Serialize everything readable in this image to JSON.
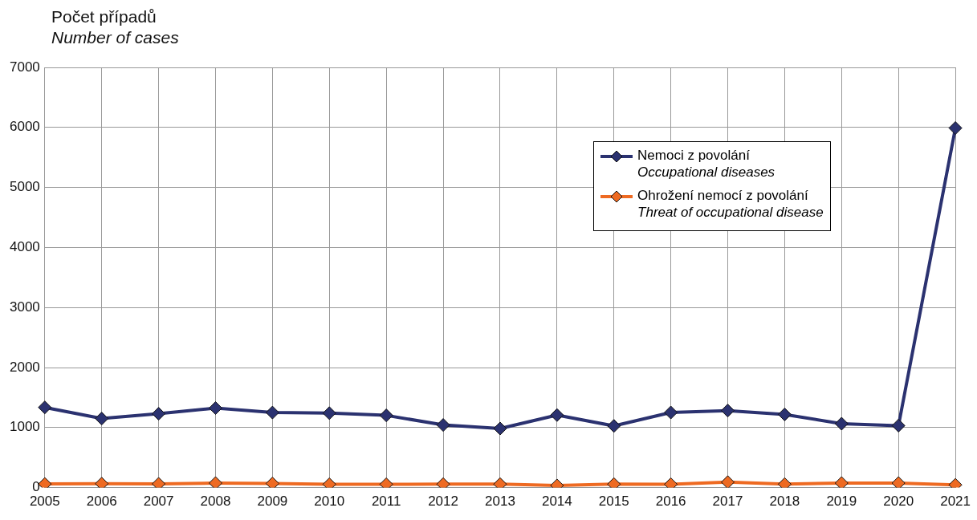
{
  "chart_data": {
    "type": "line",
    "ylabel": "Počet případů\nNumber of cases",
    "categories": [
      "2005",
      "2006",
      "2007",
      "2008",
      "2009",
      "2010",
      "2011",
      "2012",
      "2013",
      "2014",
      "2015",
      "2016",
      "2017",
      "2018",
      "2019",
      "2020",
      "2021"
    ],
    "series": [
      {
        "name": "Nemoci z povolání\nOccupational diseases",
        "color": "#2b3270",
        "values": [
          1336,
          1150,
          1230,
          1325,
          1250,
          1240,
          1203,
          1043,
          984,
          1208,
          1027,
          1251,
          1283,
          1219,
          1064,
          1032,
          5990
        ]
      },
      {
        "name": "Ohrožení nemocí z povolání\nThreat of occupational disease",
        "color": "#ee6a22",
        "values": [
          60,
          65,
          62,
          75,
          68,
          55,
          55,
          57,
          57,
          35,
          57,
          55,
          90,
          57,
          75,
          75,
          45
        ]
      }
    ],
    "ylim": [
      0,
      7000
    ],
    "yticks": [
      0,
      1000,
      2000,
      3000,
      4000,
      5000,
      6000,
      7000
    ],
    "grid": true,
    "legend": "top right",
    "marker": "diamond",
    "line_style": "solid"
  }
}
